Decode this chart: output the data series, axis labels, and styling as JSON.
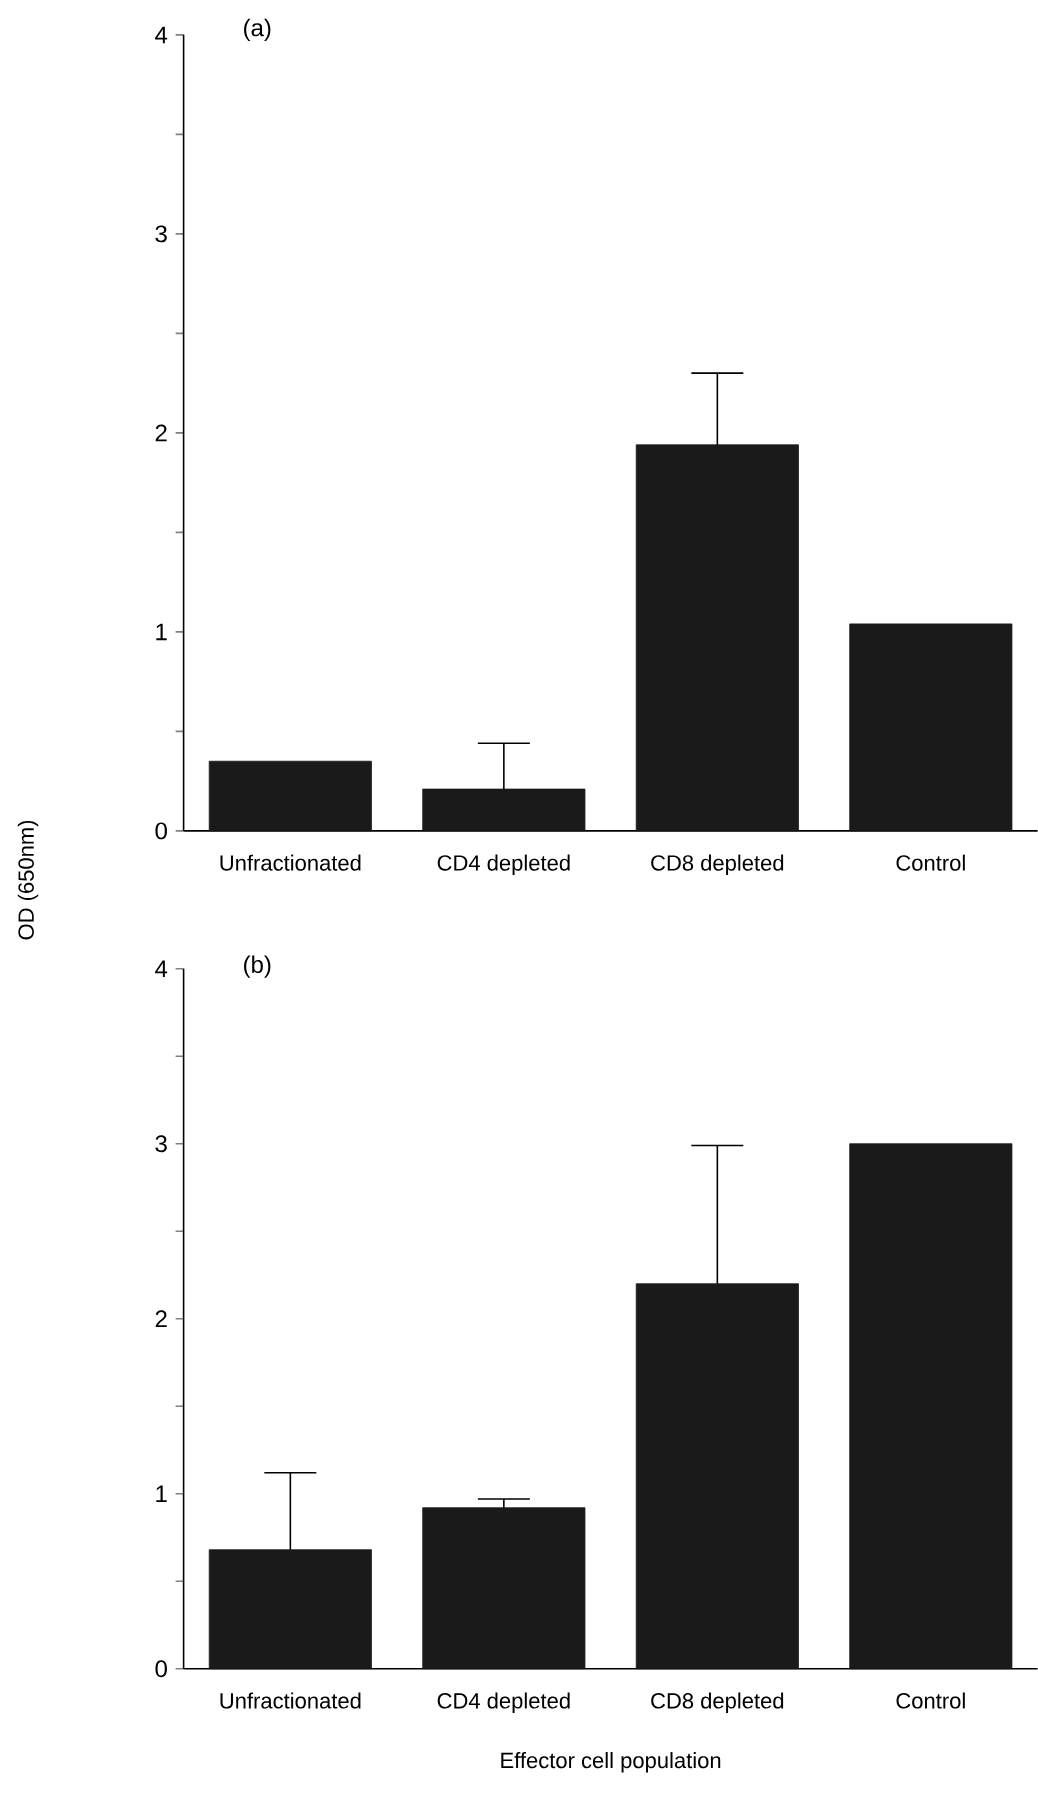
{
  "chart_data": [
    {
      "type": "bar",
      "ylabel": "OD (650nm)",
      "annotations": [
        "(a)"
      ],
      "categories": [
        "Unfractionated",
        "CD4 depleted",
        "CD8 depleted",
        "Control"
      ],
      "values": [
        0.35,
        0.21,
        1.94,
        1.04
      ],
      "errors": [
        null,
        0.23,
        0.36,
        null
      ],
      "color": "#1a1a1a",
      "ylim": [
        0,
        4
      ],
      "yticks": [
        0,
        {
          "value": 0.5,
          "label": null
        },
        1,
        {
          "value": 1.5,
          "label": null
        },
        2,
        {
          "value": 2.5,
          "label": null
        },
        3,
        {
          "value": 3.5,
          "label": null
        },
        4
      ]
    },
    {
      "type": "bar",
      "xlabel": "Effector cell population",
      "annotations": [
        "(b)"
      ],
      "categories": [
        "Unfractionated",
        "CD4 depleted",
        "CD8 depleted",
        "Control"
      ],
      "values": [
        0.68,
        0.92,
        2.2,
        3.0
      ],
      "errors": [
        0.44,
        0.05,
        0.79,
        null
      ],
      "color": "#1a1a1a",
      "ylim": [
        0,
        4
      ],
      "yticks": [
        0,
        {
          "value": 0.5,
          "label": null
        },
        1,
        {
          "value": 1.5,
          "label": null
        },
        2,
        {
          "value": 2.5,
          "label": null
        },
        3,
        {
          "value": 3.5,
          "label": null
        },
        4
      ]
    }
  ]
}
